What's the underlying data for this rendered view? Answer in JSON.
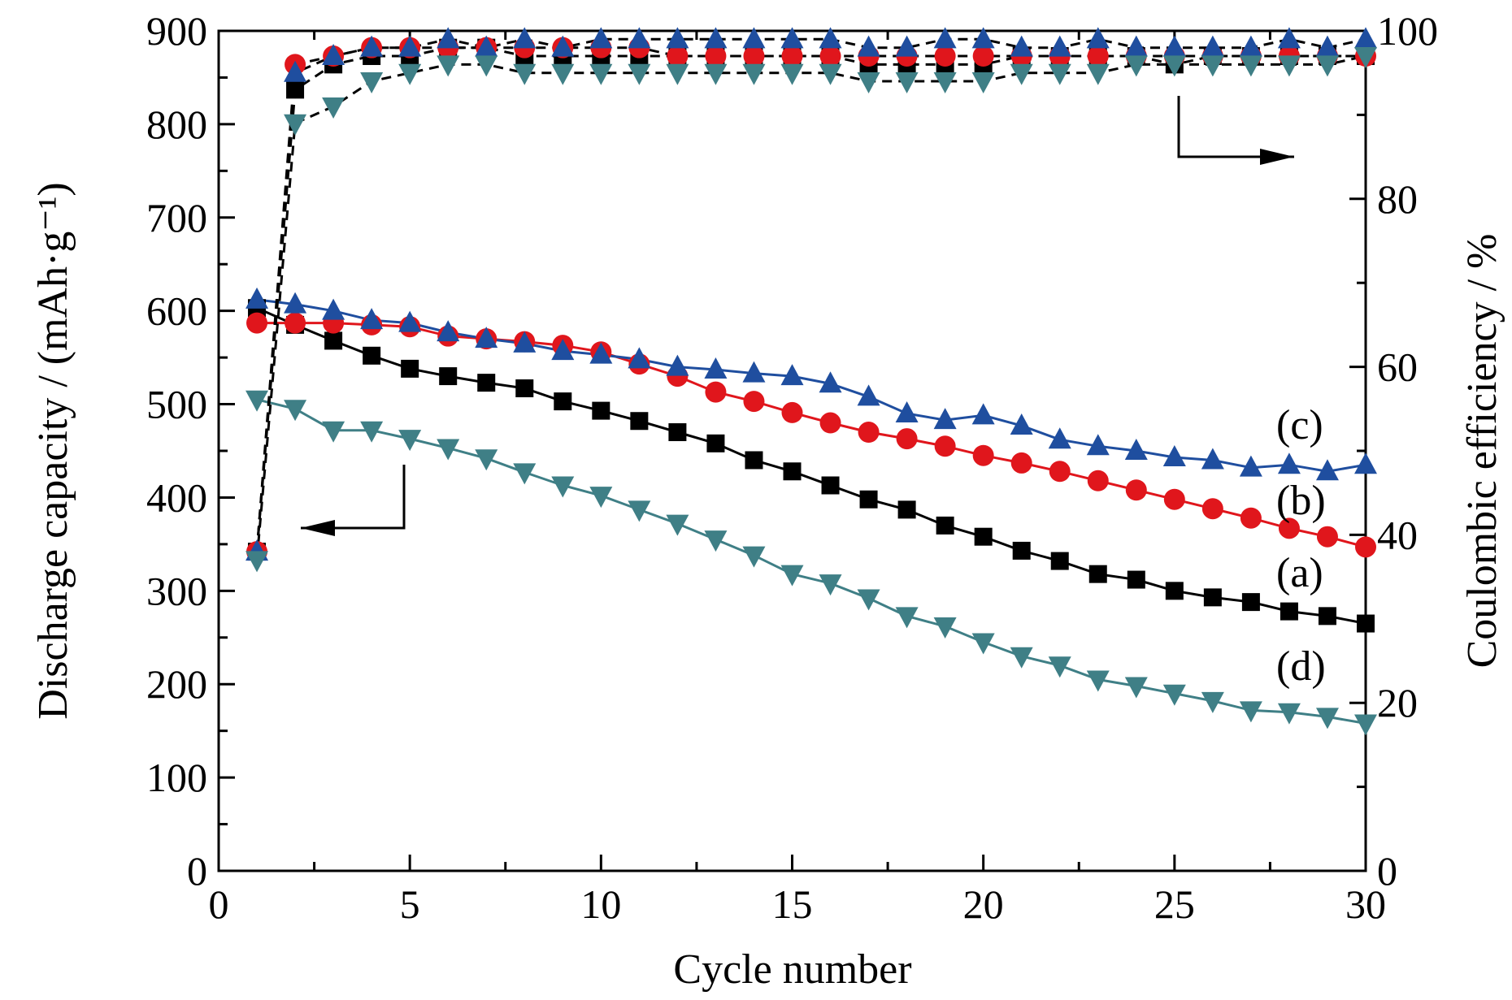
{
  "chart_data": {
    "type": "line",
    "title": "",
    "xlabel": "Cycle  number",
    "ylabel_left": "Discharge capacity / (mAh·g⁻¹)",
    "ylabel_right": "Coulombic efficiency / %",
    "xlim": [
      0,
      30
    ],
    "ylim_left": [
      0,
      900
    ],
    "ylim_right": [
      0,
      100
    ],
    "xticks": [
      0,
      5,
      10,
      15,
      20,
      25,
      30
    ],
    "yticks_left": [
      0,
      100,
      200,
      300,
      400,
      500,
      600,
      700,
      800,
      900
    ],
    "yticks_right": [
      0,
      20,
      40,
      60,
      80,
      100
    ],
    "grid": false,
    "x": [
      1,
      2,
      3,
      4,
      5,
      6,
      7,
      8,
      9,
      10,
      11,
      12,
      13,
      14,
      15,
      16,
      17,
      18,
      19,
      20,
      21,
      22,
      23,
      24,
      25,
      26,
      27,
      28,
      29,
      30
    ],
    "series": [
      {
        "name": "(a)",
        "axis": "left",
        "marker": "square",
        "color": "#000000",
        "values": [
          603,
          585,
          568,
          552,
          538,
          530,
          523,
          517,
          503,
          493,
          482,
          470,
          458,
          440,
          428,
          413,
          398,
          387,
          370,
          358,
          343,
          332,
          318,
          312,
          300,
          293,
          288,
          278,
          273,
          265
        ]
      },
      {
        "name": "(b)",
        "axis": "left",
        "marker": "circle",
        "color": "#e0161c",
        "values": [
          587,
          587,
          587,
          585,
          583,
          573,
          570,
          567,
          563,
          556,
          543,
          530,
          513,
          503,
          491,
          480,
          470,
          463,
          455,
          445,
          437,
          428,
          418,
          408,
          398,
          388,
          378,
          367,
          358,
          347
        ]
      },
      {
        "name": "(c)",
        "axis": "left",
        "marker": "triangle-up",
        "color": "#1f4e9f",
        "values": [
          612,
          607,
          600,
          590,
          587,
          577,
          570,
          565,
          557,
          553,
          548,
          540,
          537,
          533,
          530,
          522,
          508,
          490,
          483,
          488,
          477,
          462,
          455,
          450,
          443,
          440,
          432,
          435,
          428,
          435
        ]
      },
      {
        "name": "(d)",
        "axis": "left",
        "marker": "triangle-down",
        "color": "#3f7f86",
        "values": [
          505,
          495,
          472,
          472,
          463,
          453,
          442,
          427,
          413,
          402,
          387,
          372,
          355,
          338,
          318,
          308,
          292,
          273,
          262,
          245,
          230,
          220,
          205,
          198,
          190,
          182,
          172,
          170,
          165,
          158
        ]
      },
      {
        "name": "",
        "axis": "right",
        "marker": "square",
        "color": "#000000",
        "values": [
          38,
          93,
          96,
          97,
          97,
          98,
          98,
          97,
          97,
          97,
          97,
          97,
          97,
          97,
          97,
          97,
          96,
          96,
          96,
          96,
          97,
          97,
          97,
          97,
          96,
          97,
          97,
          97,
          97,
          97
        ]
      },
      {
        "name": "",
        "axis": "right",
        "marker": "circle",
        "color": "#e0161c",
        "values": [
          38,
          96,
          97,
          98,
          98,
          98,
          98,
          98,
          98,
          98,
          98,
          97,
          97,
          97,
          97,
          97,
          97,
          97,
          97,
          97,
          97,
          97,
          97,
          97,
          97,
          97,
          97,
          97,
          97,
          97
        ]
      },
      {
        "name": "",
        "axis": "right",
        "marker": "triangle-up",
        "color": "#1f4e9f",
        "values": [
          38,
          95,
          97,
          98,
          98,
          99,
          98,
          99,
          98,
          99,
          99,
          99,
          99,
          99,
          99,
          99,
          98,
          98,
          99,
          99,
          98,
          98,
          99,
          98,
          98,
          98,
          98,
          99,
          98,
          99
        ]
      },
      {
        "name": "",
        "axis": "right",
        "marker": "triangle-down",
        "color": "#3f7f86",
        "values": [
          37,
          89,
          91,
          94,
          95,
          96,
          96,
          95,
          95,
          95,
          95,
          95,
          95,
          95,
          95,
          95,
          94,
          94,
          94,
          94,
          95,
          95,
          95,
          96,
          96,
          96,
          96,
          96,
          96,
          97
        ]
      }
    ],
    "annotations": {
      "left_arrow": "points to left axis",
      "right_arrow": "points to right axis"
    }
  }
}
